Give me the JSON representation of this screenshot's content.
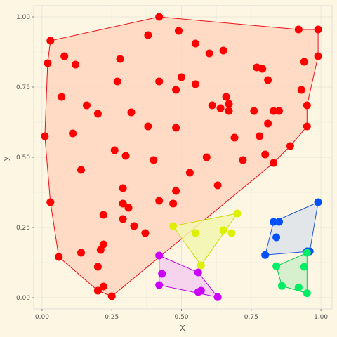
{
  "chart_data": {
    "type": "scatter",
    "title": "",
    "xlabel": "X",
    "ylabel": "y",
    "xlim": [
      -0.03,
      1.04
    ],
    "ylim": [
      -0.04,
      1.04
    ],
    "x_ticks": [
      0.0,
      0.25,
      0.5,
      0.75,
      1.0
    ],
    "x_tick_labels": [
      "0.00",
      "0.25",
      "0.50",
      "0.75",
      "1.00"
    ],
    "y_ticks": [
      0.0,
      0.25,
      0.5,
      0.75,
      1.0
    ],
    "y_tick_labels": [
      "0.00",
      "0.25",
      "0.50",
      "0.75",
      "1.00"
    ],
    "grid": true,
    "legend": "none",
    "background": "#fdf6e3",
    "grid_color": "#e6e1d3",
    "series": [
      {
        "color": "#ff0000",
        "hull_fill": "#ffd6c0",
        "hull_stroke": "#e8111b",
        "points": [
          [
            0.42,
            1.0
          ],
          [
            0.49,
            0.95
          ],
          [
            0.38,
            0.935
          ],
          [
            0.55,
            0.905
          ],
          [
            0.6,
            0.87
          ],
          [
            0.65,
            0.88
          ],
          [
            0.92,
            0.955
          ],
          [
            0.99,
            0.955
          ],
          [
            0.03,
            0.915
          ],
          [
            0.08,
            0.86
          ],
          [
            0.12,
            0.83
          ],
          [
            0.02,
            0.835
          ],
          [
            0.28,
            0.85
          ],
          [
            0.99,
            0.86
          ],
          [
            0.77,
            0.82
          ],
          [
            0.79,
            0.815
          ],
          [
            0.94,
            0.84
          ],
          [
            0.27,
            0.77
          ],
          [
            0.42,
            0.77
          ],
          [
            0.5,
            0.785
          ],
          [
            0.55,
            0.76
          ],
          [
            0.48,
            0.74
          ],
          [
            0.81,
            0.775
          ],
          [
            0.93,
            0.74
          ],
          [
            0.07,
            0.715
          ],
          [
            0.16,
            0.685
          ],
          [
            0.2,
            0.655
          ],
          [
            0.32,
            0.66
          ],
          [
            0.61,
            0.685
          ],
          [
            0.64,
            0.675
          ],
          [
            0.66,
            0.715
          ],
          [
            0.67,
            0.69
          ],
          [
            0.67,
            0.665
          ],
          [
            0.76,
            0.665
          ],
          [
            0.83,
            0.665
          ],
          [
            0.85,
            0.665
          ],
          [
            0.95,
            0.685
          ],
          [
            0.38,
            0.61
          ],
          [
            0.48,
            0.605
          ],
          [
            0.81,
            0.62
          ],
          [
            0.95,
            0.61
          ],
          [
            0.11,
            0.585
          ],
          [
            0.01,
            0.575
          ],
          [
            0.69,
            0.57
          ],
          [
            0.78,
            0.575
          ],
          [
            0.26,
            0.525
          ],
          [
            0.3,
            0.505
          ],
          [
            0.4,
            0.49
          ],
          [
            0.59,
            0.5
          ],
          [
            0.72,
            0.49
          ],
          [
            0.8,
            0.51
          ],
          [
            0.89,
            0.54
          ],
          [
            0.83,
            0.48
          ],
          [
            0.14,
            0.455
          ],
          [
            0.53,
            0.445
          ],
          [
            0.29,
            0.39
          ],
          [
            0.63,
            0.4
          ],
          [
            0.48,
            0.38
          ],
          [
            0.03,
            0.34
          ],
          [
            0.29,
            0.335
          ],
          [
            0.31,
            0.32
          ],
          [
            0.42,
            0.345
          ],
          [
            0.47,
            0.335
          ],
          [
            0.22,
            0.295
          ],
          [
            0.29,
            0.28
          ],
          [
            0.33,
            0.255
          ],
          [
            0.37,
            0.23
          ],
          [
            0.06,
            0.145
          ],
          [
            0.14,
            0.16
          ],
          [
            0.22,
            0.19
          ],
          [
            0.21,
            0.17
          ],
          [
            0.2,
            0.11
          ],
          [
            0.22,
            0.04
          ],
          [
            0.2,
            0.025
          ],
          [
            0.25,
            0.005
          ]
        ],
        "hull": [
          [
            0.42,
            1.0
          ],
          [
            0.92,
            0.955
          ],
          [
            0.99,
            0.955
          ],
          [
            0.99,
            0.86
          ],
          [
            0.95,
            0.685
          ],
          [
            0.95,
            0.61
          ],
          [
            0.89,
            0.54
          ],
          [
            0.83,
            0.48
          ],
          [
            0.25,
            0.005
          ],
          [
            0.2,
            0.025
          ],
          [
            0.06,
            0.145
          ],
          [
            0.03,
            0.34
          ],
          [
            0.01,
            0.575
          ],
          [
            0.02,
            0.835
          ],
          [
            0.03,
            0.915
          ]
        ]
      },
      {
        "color": "#ddf000",
        "hull_fill": "#f2f6b0",
        "hull_stroke": "#c8dc00",
        "points": [
          [
            0.47,
            0.255
          ],
          [
            0.7,
            0.3
          ],
          [
            0.55,
            0.23
          ],
          [
            0.65,
            0.24
          ],
          [
            0.68,
            0.23
          ],
          [
            0.57,
            0.115
          ]
        ],
        "hull": [
          [
            0.47,
            0.255
          ],
          [
            0.7,
            0.3
          ],
          [
            0.57,
            0.115
          ]
        ]
      },
      {
        "color": "#cc00ff",
        "hull_fill": "#f6cef0",
        "hull_stroke": "#b800e0",
        "points": [
          [
            0.42,
            0.15
          ],
          [
            0.43,
            0.085
          ],
          [
            0.42,
            0.045
          ],
          [
            0.56,
            0.09
          ],
          [
            0.57,
            0.025
          ],
          [
            0.56,
            0.02
          ],
          [
            0.63,
            0.002
          ]
        ],
        "hull": [
          [
            0.42,
            0.15
          ],
          [
            0.56,
            0.09
          ],
          [
            0.63,
            0.002
          ],
          [
            0.42,
            0.045
          ]
        ]
      },
      {
        "color": "#0050ff",
        "hull_fill": "#dde3ea",
        "hull_stroke": "#1a55d8",
        "points": [
          [
            0.99,
            0.34
          ],
          [
            0.83,
            0.27
          ],
          [
            0.85,
            0.27
          ],
          [
            0.84,
            0.215
          ],
          [
            0.95,
            0.165
          ],
          [
            0.96,
            0.165
          ],
          [
            0.8,
            0.152
          ]
        ],
        "hull": [
          [
            0.99,
            0.34
          ],
          [
            0.96,
            0.165
          ],
          [
            0.8,
            0.152
          ],
          [
            0.83,
            0.27
          ]
        ]
      },
      {
        "color": "#00ee66",
        "hull_fill": "#cfeec9",
        "hull_stroke": "#00cc55",
        "points": [
          [
            0.95,
            0.16
          ],
          [
            0.94,
            0.11
          ],
          [
            0.84,
            0.112
          ],
          [
            0.86,
            0.042
          ],
          [
            0.92,
            0.037
          ],
          [
            0.95,
            0.016
          ]
        ],
        "hull": [
          [
            0.95,
            0.16
          ],
          [
            0.95,
            0.016
          ],
          [
            0.86,
            0.042
          ],
          [
            0.84,
            0.112
          ]
        ]
      }
    ]
  }
}
